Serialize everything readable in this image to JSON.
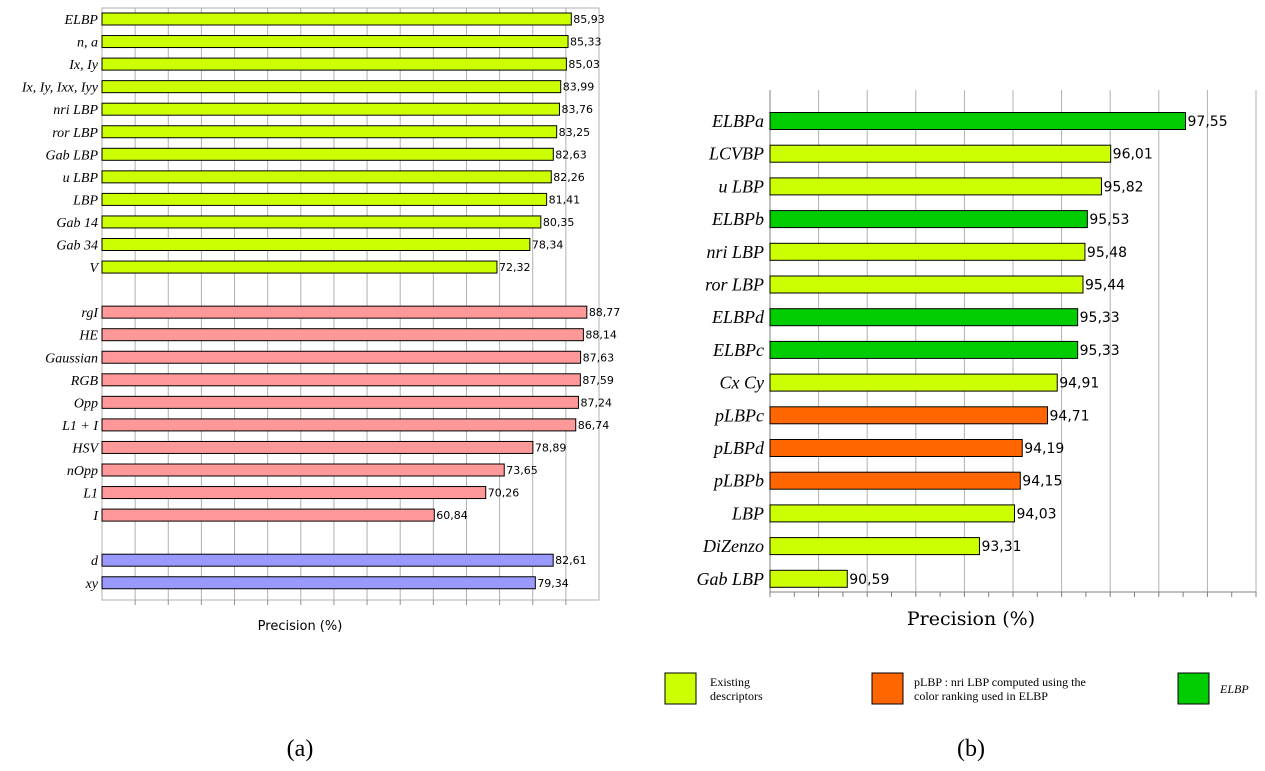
{
  "chart_data": [
    {
      "type": "bar",
      "orientation": "horizontal",
      "panel_label": "(a)",
      "xlabel": "Precision (%)",
      "grid": true,
      "groups": [
        {
          "color": "#ccff00",
          "categories": [
            "ELBP",
            "n, a",
            "Ix, Iy",
            "Ix, Iy, Ixx, Iyy",
            "nri LBP",
            "ror LBP",
            "Gab LBP",
            "u LBP",
            "LBP",
            "Gab 14",
            "Gab 34",
            "V"
          ],
          "values": [
            85.93,
            85.33,
            85.03,
            83.99,
            83.76,
            83.25,
            82.63,
            82.26,
            81.41,
            80.35,
            78.34,
            72.32
          ],
          "labels": [
            "85,93",
            "85,33",
            "85,03",
            "83,99",
            "83,76",
            "83,25",
            "82,63",
            "82,26",
            "81,41",
            "80,35",
            "78,34",
            "72,32"
          ]
        },
        {
          "color": "#ff9999",
          "categories": [
            "rgI",
            "HE",
            "Gaussian",
            "RGB",
            "Opp",
            "L1 + I",
            "HSV",
            "nOpp",
            "L1",
            "I"
          ],
          "values": [
            88.77,
            88.14,
            87.63,
            87.59,
            87.24,
            86.74,
            78.89,
            73.65,
            70.26,
            60.84
          ],
          "labels": [
            "88,77",
            "88,14",
            "87,63",
            "87,59",
            "87,24",
            "86,74",
            "78,89",
            "73,65",
            "70,26",
            "60,84"
          ]
        },
        {
          "color": "#9999ff",
          "categories": [
            "d",
            "xy"
          ],
          "values": [
            82.61,
            79.34
          ],
          "labels": [
            "82,61",
            "79,34"
          ]
        }
      ]
    },
    {
      "type": "bar",
      "orientation": "horizontal",
      "panel_label": "(b)",
      "xlabel": "Precision (%)",
      "grid": true,
      "categories": [
        "ELBPa",
        "LCVBP",
        "u LBP",
        "ELBPb",
        "nri LBP",
        "ror LBP",
        "ELBPd",
        "ELBPc",
        "Cx Cy",
        "pLBPc",
        "pLBPd",
        "pLBPb",
        "LBP",
        "DiZenzo",
        "Gab LBP"
      ],
      "values": [
        97.55,
        96.01,
        95.82,
        95.53,
        95.48,
        95.44,
        95.33,
        95.33,
        94.91,
        94.71,
        94.19,
        94.15,
        94.03,
        93.31,
        90.59
      ],
      "labels": [
        "97,55",
        "96,01",
        "95,82",
        "95,53",
        "95,48",
        "95,44",
        "95,33",
        "95,33",
        "94,91",
        "94,71",
        "94,19",
        "94,15",
        "94,03",
        "93,31",
        "90,59"
      ],
      "bar_group": [
        "elbp",
        "existing",
        "existing",
        "elbp",
        "existing",
        "existing",
        "elbp",
        "elbp",
        "existing",
        "plbp",
        "plbp",
        "plbp",
        "existing",
        "existing",
        "existing"
      ],
      "group_colors": {
        "existing": "#ccff00",
        "plbp": "#ff6600",
        "elbp": "#00cc00"
      },
      "legend": [
        {
          "group": "existing",
          "color": "#ccff00",
          "lines": [
            "Existing",
            "descriptors"
          ]
        },
        {
          "group": "plbp",
          "color": "#ff6600",
          "lines": [
            "pLBP : nri LBP computed using the",
            "color ranking used in ELBP"
          ]
        },
        {
          "group": "elbp",
          "color": "#00cc00",
          "lines": [
            "ELBP"
          ]
        }
      ]
    }
  ]
}
